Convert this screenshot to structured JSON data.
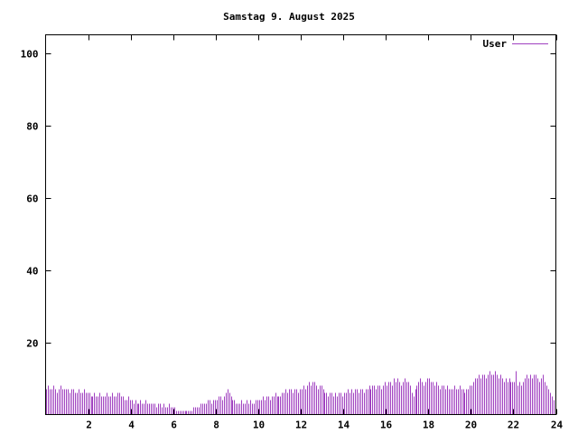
{
  "chart_data": {
    "type": "bar",
    "title": "Samstag 9. August 2025",
    "xlabel": "",
    "ylabel": "",
    "xlim": [
      0,
      24
    ],
    "ylim": [
      0,
      105
    ],
    "xticks": [
      2,
      4,
      6,
      8,
      10,
      12,
      14,
      16,
      18,
      20,
      22,
      24
    ],
    "yticks": [
      20,
      40,
      60,
      80,
      100
    ],
    "grid": false,
    "legend_position": "top-right",
    "bar_color": "#a040c0",
    "axis_color": "#000000",
    "interval_hours": 0.0833333,
    "series": [
      {
        "name": "User",
        "color": "#a040c0",
        "values": [
          7,
          8,
          7,
          7,
          8,
          7,
          6,
          7,
          8,
          7,
          7,
          7,
          7,
          6,
          7,
          7,
          6,
          6,
          7,
          6,
          6,
          7,
          6,
          6,
          6,
          5,
          5,
          6,
          5,
          5,
          6,
          5,
          5,
          5,
          6,
          5,
          5,
          6,
          5,
          5,
          6,
          6,
          5,
          5,
          4,
          4,
          5,
          4,
          4,
          3,
          4,
          3,
          3,
          4,
          3,
          3,
          4,
          3,
          3,
          3,
          3,
          3,
          2,
          3,
          3,
          2,
          3,
          2,
          2,
          3,
          2,
          2,
          2,
          1,
          1,
          1,
          1,
          1,
          1,
          1,
          1,
          1,
          1,
          2,
          2,
          2,
          2,
          3,
          3,
          3,
          3,
          4,
          4,
          3,
          4,
          4,
          4,
          5,
          5,
          4,
          5,
          6,
          7,
          6,
          5,
          4,
          4,
          3,
          3,
          3,
          4,
          3,
          3,
          4,
          3,
          4,
          3,
          3,
          4,
          4,
          4,
          4,
          5,
          4,
          5,
          5,
          4,
          5,
          5,
          6,
          5,
          5,
          5,
          6,
          6,
          7,
          6,
          7,
          7,
          6,
          7,
          7,
          6,
          7,
          7,
          8,
          7,
          8,
          9,
          8,
          9,
          9,
          8,
          7,
          8,
          8,
          7,
          6,
          6,
          5,
          6,
          6,
          5,
          6,
          5,
          6,
          6,
          5,
          6,
          6,
          7,
          6,
          7,
          6,
          7,
          7,
          6,
          7,
          7,
          6,
          7,
          7,
          8,
          7,
          8,
          8,
          7,
          8,
          8,
          7,
          8,
          9,
          8,
          9,
          9,
          8,
          10,
          9,
          10,
          9,
          8,
          9,
          10,
          9,
          9,
          8,
          6,
          5,
          7,
          8,
          9,
          10,
          9,
          8,
          9,
          10,
          10,
          9,
          9,
          8,
          9,
          8,
          7,
          8,
          8,
          7,
          8,
          7,
          7,
          7,
          8,
          7,
          7,
          8,
          7,
          7,
          6,
          7,
          7,
          8,
          8,
          9,
          10,
          10,
          11,
          10,
          11,
          11,
          10,
          11,
          12,
          11,
          11,
          12,
          11,
          10,
          11,
          10,
          9,
          10,
          9,
          10,
          9,
          9,
          9,
          12,
          8,
          9,
          8,
          9,
          10,
          11,
          10,
          11,
          10,
          11,
          11,
          10,
          9,
          10,
          11,
          9,
          8,
          7,
          6,
          5,
          4,
          4
        ]
      }
    ]
  }
}
